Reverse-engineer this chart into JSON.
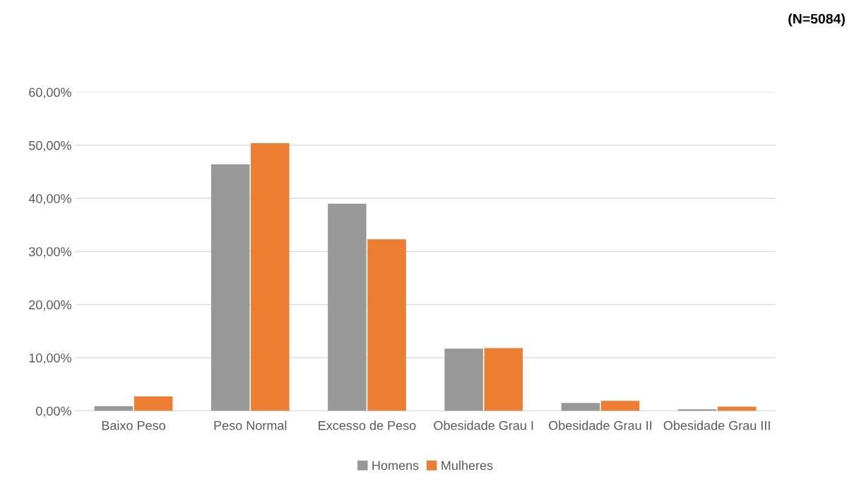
{
  "chart_data": {
    "type": "bar",
    "annotations": [
      "(N=5084)"
    ],
    "categories": [
      "Baixo Peso",
      "Peso Normal",
      "Excesso de Peso",
      "Obesidade Grau I",
      "Obesidade Grau II",
      "Obesidade Grau III"
    ],
    "series": [
      {
        "name": "Homens",
        "color": "#989898",
        "values": [
          0.9,
          46.4,
          39.0,
          11.7,
          1.5,
          0.3
        ]
      },
      {
        "name": "Mulheres",
        "color": "#ed7d31",
        "values": [
          2.7,
          50.4,
          32.3,
          11.8,
          1.9,
          0.8
        ]
      }
    ],
    "ylim": [
      0,
      60
    ],
    "yticks": [
      {
        "value": 0,
        "label": "0,00%"
      },
      {
        "value": 10,
        "label": "10,00%"
      },
      {
        "value": 20,
        "label": "20,00%"
      },
      {
        "value": 30,
        "label": "30,00%"
      },
      {
        "value": 40,
        "label": "40,00%"
      },
      {
        "value": 50,
        "label": "50,00%"
      },
      {
        "value": 60,
        "label": "60,00%"
      }
    ],
    "grid": "y",
    "legend": "bottom"
  }
}
